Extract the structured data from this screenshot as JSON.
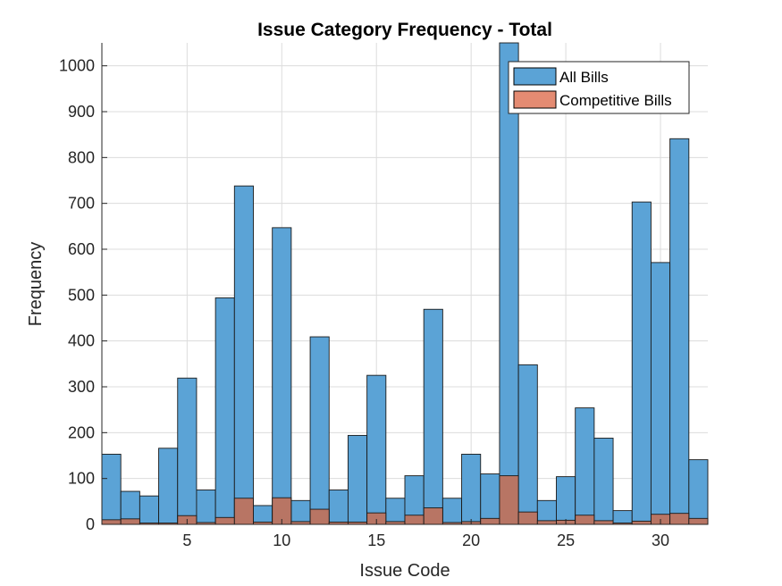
{
  "chart_data": {
    "type": "bar",
    "title": "Issue Category Frequency - Total",
    "xlabel": "Issue Code",
    "ylabel": "Frequency",
    "xlim": [
      0.5,
      32.5
    ],
    "ylim": [
      0,
      1050
    ],
    "xticks": [
      5,
      10,
      15,
      20,
      25,
      30
    ],
    "yticks": [
      0,
      100,
      200,
      300,
      400,
      500,
      600,
      700,
      800,
      900,
      1000
    ],
    "grid": true,
    "legend_position": "top-right",
    "categories": [
      1,
      2,
      3,
      4,
      5,
      6,
      7,
      8,
      9,
      10,
      11,
      12,
      13,
      14,
      15,
      16,
      17,
      18,
      19,
      20,
      21,
      22,
      23,
      24,
      25,
      26,
      27,
      28,
      29,
      30,
      31,
      32
    ],
    "series": [
      {
        "name": "All Bills",
        "color": "#5ba3d6",
        "values": [
          153,
          72,
          62,
          166,
          319,
          75,
          494,
          738,
          41,
          647,
          52,
          409,
          75,
          194,
          325,
          57,
          106,
          469,
          57,
          153,
          110,
          1050,
          348,
          52,
          104,
          254,
          188,
          30,
          703,
          571,
          841,
          141
        ]
      },
      {
        "name": "Competitive Bills",
        "color": "#e48b72",
        "values": [
          10,
          12,
          3,
          3,
          19,
          4,
          15,
          57,
          5,
          58,
          6,
          33,
          5,
          5,
          25,
          6,
          20,
          36,
          4,
          6,
          13,
          106,
          27,
          8,
          9,
          20,
          8,
          3,
          7,
          22,
          24,
          13
        ]
      }
    ]
  }
}
